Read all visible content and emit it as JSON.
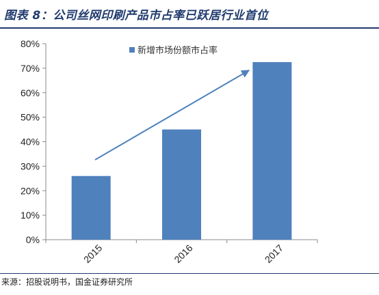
{
  "title": "图表 8：公司丝网印刷产品市占率已跃居行业首位",
  "source": "来源：招股说明书，国金证券研究所",
  "chart_data": {
    "type": "bar",
    "categories": [
      "2015",
      "2016",
      "2017"
    ],
    "series": [
      {
        "name": "新增市场份额市占率",
        "values": [
          26,
          45,
          72.5
        ],
        "color": "#4f81bd"
      }
    ],
    "ylim": [
      0,
      80
    ],
    "yticks": [
      "0%",
      "10%",
      "20%",
      "30%",
      "40%",
      "50%",
      "60%",
      "70%",
      "80%"
    ],
    "grid": false,
    "legend": "top",
    "trend_arrow": true,
    "arrow_color": "#4f81bd"
  }
}
